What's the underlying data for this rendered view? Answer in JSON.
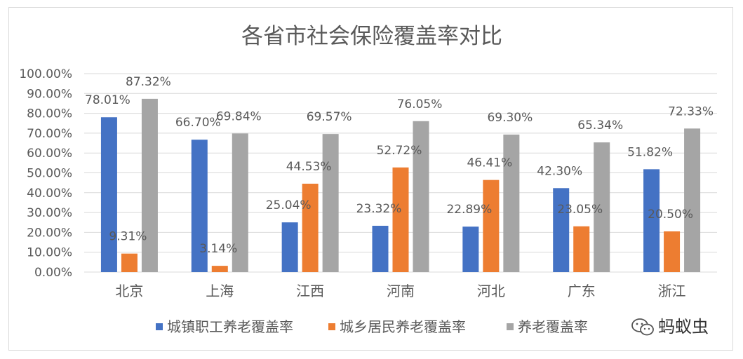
{
  "chart_data": {
    "type": "bar",
    "title": "各省市社会保险覆盖率对比",
    "categories": [
      "北京",
      "上海",
      "江西",
      "河南",
      "河北",
      "广东",
      "浙江"
    ],
    "series": [
      {
        "name": "城镇职工养老覆盖率",
        "color": "#4472c4",
        "values": [
          78.01,
          66.7,
          25.04,
          23.32,
          22.89,
          42.3,
          51.82
        ],
        "labels": [
          "78.01%",
          "66.70%",
          "25.04%",
          "23.32%",
          "22.89%",
          "42.30%",
          "51.82%"
        ]
      },
      {
        "name": "城乡居民养老覆盖率",
        "color": "#ed7d31",
        "values": [
          9.31,
          3.14,
          44.53,
          52.72,
          46.41,
          23.05,
          20.5
        ],
        "labels": [
          "9.31%",
          "3.14%",
          "44.53%",
          "52.72%",
          "46.41%",
          "23.05%",
          "20.50%"
        ]
      },
      {
        "name": "养老覆盖率",
        "color": "#a5a5a5",
        "values": [
          87.32,
          69.84,
          69.57,
          76.05,
          69.3,
          65.34,
          72.33
        ],
        "labels": [
          "87.32%",
          "69.84%",
          "69.57%",
          "76.05%",
          "69.30%",
          "65.34%",
          "72.33%"
        ]
      }
    ],
    "ylim": [
      0,
      100
    ],
    "yticks": [
      0,
      10,
      20,
      30,
      40,
      50,
      60,
      70,
      80,
      90,
      100
    ],
    "ytick_labels": [
      "0.00%",
      "10.00%",
      "20.00%",
      "30.00%",
      "40.00%",
      "50.00%",
      "60.00%",
      "70.00%",
      "80.00%",
      "90.00%",
      "100.00%"
    ],
    "grid": true,
    "legend_position": "bottom"
  },
  "watermark": {
    "text": "蚂蚁虫",
    "icon": "wechat-icon"
  }
}
